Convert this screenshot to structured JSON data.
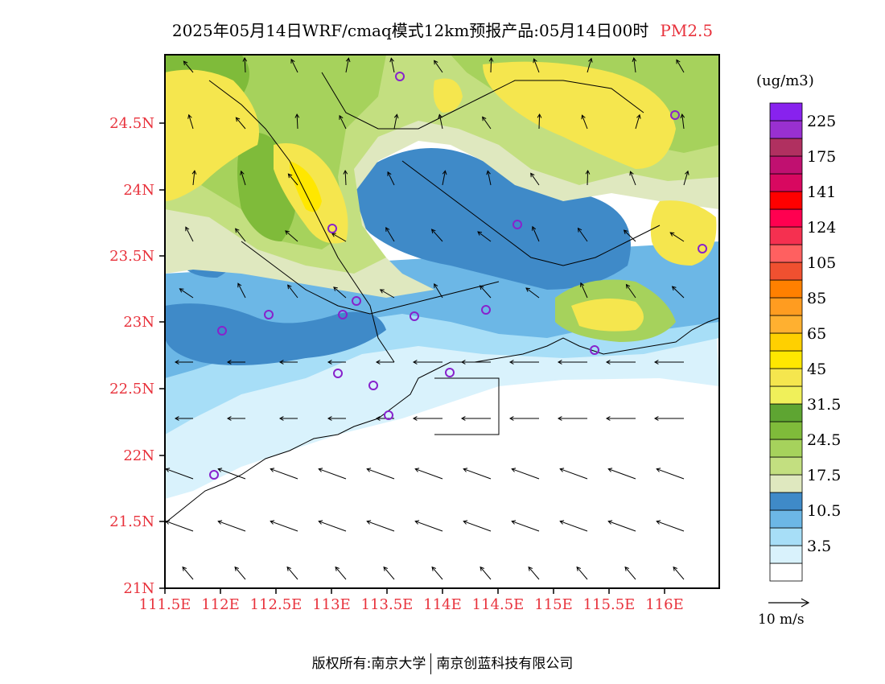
{
  "title": {
    "main": "2025年05月14日WRF/cmaq模式12km预报产品:05月14日00时",
    "pollutant": "PM2.5"
  },
  "map": {
    "lat_labels": [
      "24.5N",
      "24N",
      "23.5N",
      "23N",
      "22.5N",
      "22N",
      "21.5N",
      "21N"
    ],
    "lon_labels": [
      "111.5E",
      "112E",
      "112.5E",
      "113E",
      "113.5E",
      "114E",
      "114.5E",
      "115E",
      "115.5E",
      "116E"
    ],
    "lat_range": [
      21.0,
      25.0
    ],
    "lon_range": [
      111.5,
      116.5
    ],
    "station_markers": "purple-circle-icon",
    "wind_vectors": "black-arrow-icon"
  },
  "legend": {
    "unit": "(ug/m3)",
    "levels": [
      {
        "label": "",
        "color": "#ffffff"
      },
      {
        "label": "3.5",
        "color": "#d9f2fc"
      },
      {
        "label": "",
        "color": "#a7def7"
      },
      {
        "label": "10.5",
        "color": "#6cb7e6"
      },
      {
        "label": "",
        "color": "#3f8ac8"
      },
      {
        "label": "17.5",
        "color": "#dfe8bf"
      },
      {
        "label": "",
        "color": "#c3df80"
      },
      {
        "label": "24.5",
        "color": "#a6d25c"
      },
      {
        "label": "",
        "color": "#7fbb3a"
      },
      {
        "label": "31.5",
        "color": "#5ea532"
      },
      {
        "label": "",
        "color": "#f0f05a"
      },
      {
        "label": "45",
        "color": "#f5e64e"
      },
      {
        "label": "",
        "color": "#ffe700"
      },
      {
        "label": "65",
        "color": "#ffd000"
      },
      {
        "label": "",
        "color": "#ffb030"
      },
      {
        "label": "85",
        "color": "#ff9c20"
      },
      {
        "label": "",
        "color": "#ff8000"
      },
      {
        "label": "105",
        "color": "#f05030"
      },
      {
        "label": "",
        "color": "#ff6060"
      },
      {
        "label": "124",
        "color": "#f53050"
      },
      {
        "label": "",
        "color": "#ff0050"
      },
      {
        "label": "141",
        "color": "#ff0000"
      },
      {
        "label": "",
        "color": "#d80860"
      },
      {
        "label": "175",
        "color": "#c01070"
      },
      {
        "label": "",
        "color": "#b03060"
      },
      {
        "label": "225",
        "color": "#9930d0"
      },
      {
        "label": "",
        "color": "#8822ee"
      }
    ]
  },
  "reference_vector": {
    "label": "10 m/s"
  },
  "footer": {
    "left": "版权所有:南京大学",
    "right": "南京创蓝科技有限公司"
  }
}
